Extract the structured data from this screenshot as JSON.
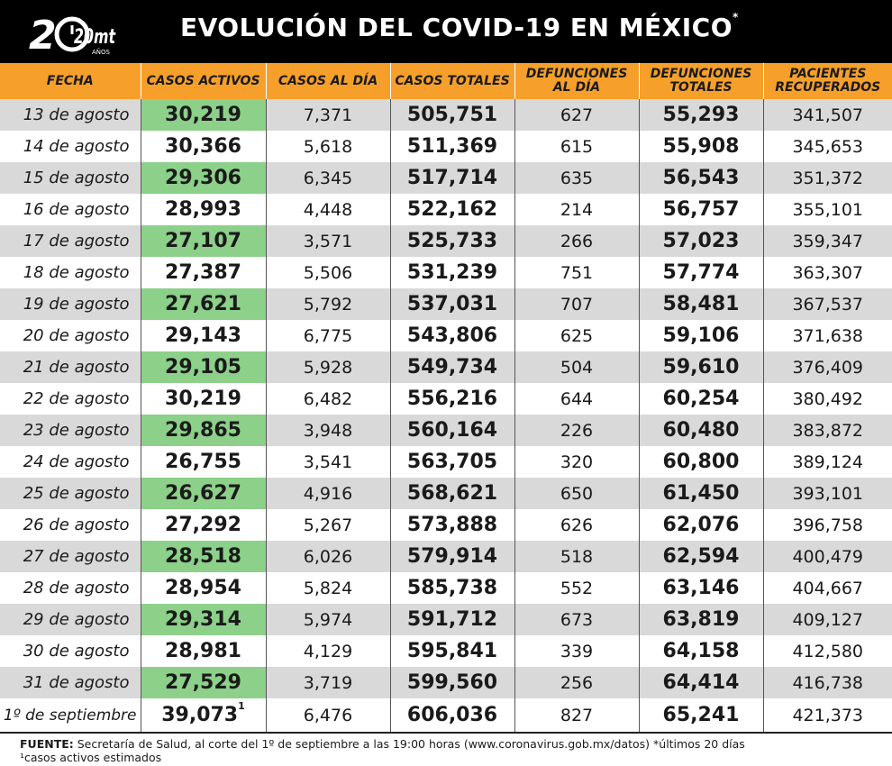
{
  "header": {
    "logo_text": "20mt",
    "logo_sub": "AÑOS",
    "title": "EVOLUCIÓN DEL COVID-19 EN MÉXICO",
    "title_mark": "*"
  },
  "table": {
    "columns": [
      "FECHA",
      "CASOS ACTIVOS",
      "CASOS AL DÍA",
      "CASOS TOTALES",
      "DEFUNCIONES AL DÍA",
      "DEFUNCIONES TOTALES",
      "PACIENTES RECUPERADOS"
    ],
    "rows": [
      [
        "13 de agosto",
        "30,219",
        "7,371",
        "505,751",
        "627",
        "55,293",
        "341,507"
      ],
      [
        "14 de agosto",
        "30,366",
        "5,618",
        "511,369",
        "615",
        "55,908",
        "345,653"
      ],
      [
        "15 de agosto",
        "29,306",
        "6,345",
        "517,714",
        "635",
        "56,543",
        "351,372"
      ],
      [
        "16 de agosto",
        "28,993",
        "4,448",
        "522,162",
        "214",
        "56,757",
        "355,101"
      ],
      [
        "17 de agosto",
        "27,107",
        "3,571",
        "525,733",
        "266",
        "57,023",
        "359,347"
      ],
      [
        "18 de agosto",
        "27,387",
        "5,506",
        "531,239",
        "751",
        "57,774",
        "363,307"
      ],
      [
        "19 de agosto",
        "27,621",
        "5,792",
        "537,031",
        "707",
        "58,481",
        "367,537"
      ],
      [
        "20 de agosto",
        "29,143",
        "6,775",
        "543,806",
        "625",
        "59,106",
        "371,638"
      ],
      [
        "21 de agosto",
        "29,105",
        "5,928",
        "549,734",
        "504",
        "59,610",
        "376,409"
      ],
      [
        "22 de agosto",
        "30,219",
        "6,482",
        "556,216",
        "644",
        "60,254",
        "380,492"
      ],
      [
        "23 de agosto",
        "29,865",
        "3,948",
        "560,164",
        "226",
        "60,480",
        "383,872"
      ],
      [
        "24 de agosto",
        "26,755",
        "3,541",
        "563,705",
        "320",
        "60,800",
        "389,124"
      ],
      [
        "25 de agosto",
        "26,627",
        "4,916",
        "568,621",
        "650",
        "61,450",
        "393,101"
      ],
      [
        "26 de agosto",
        "27,292",
        "5,267",
        "573,888",
        "626",
        "62,076",
        "396,758"
      ],
      [
        "27 de agosto",
        "28,518",
        "6,026",
        "579,914",
        "518",
        "62,594",
        "400,479"
      ],
      [
        "28 de agosto",
        "28,954",
        "5,824",
        "585,738",
        "552",
        "63,146",
        "404,667"
      ],
      [
        "29 de agosto",
        "29,314",
        "5,974",
        "591,712",
        "673",
        "63,819",
        "409,127"
      ],
      [
        "30 de agosto",
        "28,981",
        "4,129",
        "595,841",
        "339",
        "64,158",
        "412,580"
      ],
      [
        "31 de agosto",
        "27,529",
        "3,719",
        "599,560",
        "256",
        "64,414",
        "416,738"
      ],
      [
        "1º de septiembre",
        "39,073",
        "6,476",
        "606,036",
        "827",
        "65,241",
        "421,373"
      ]
    ],
    "last_row_mark": "1"
  },
  "footer": {
    "source_label": "FUENTE:",
    "source_text": " Secretaría de Salud, al corte del 1º de septiembre a las 19:00 horas (www.coronavirus.gob.mx/datos) *últimos 20 días",
    "note": "¹casos activos estimados"
  },
  "colors": {
    "header_bg": "#000000",
    "column_header_bg": "#f6a02b",
    "active_cases_highlight": "#8cd08a",
    "row_alt": "#d9d9d9"
  }
}
